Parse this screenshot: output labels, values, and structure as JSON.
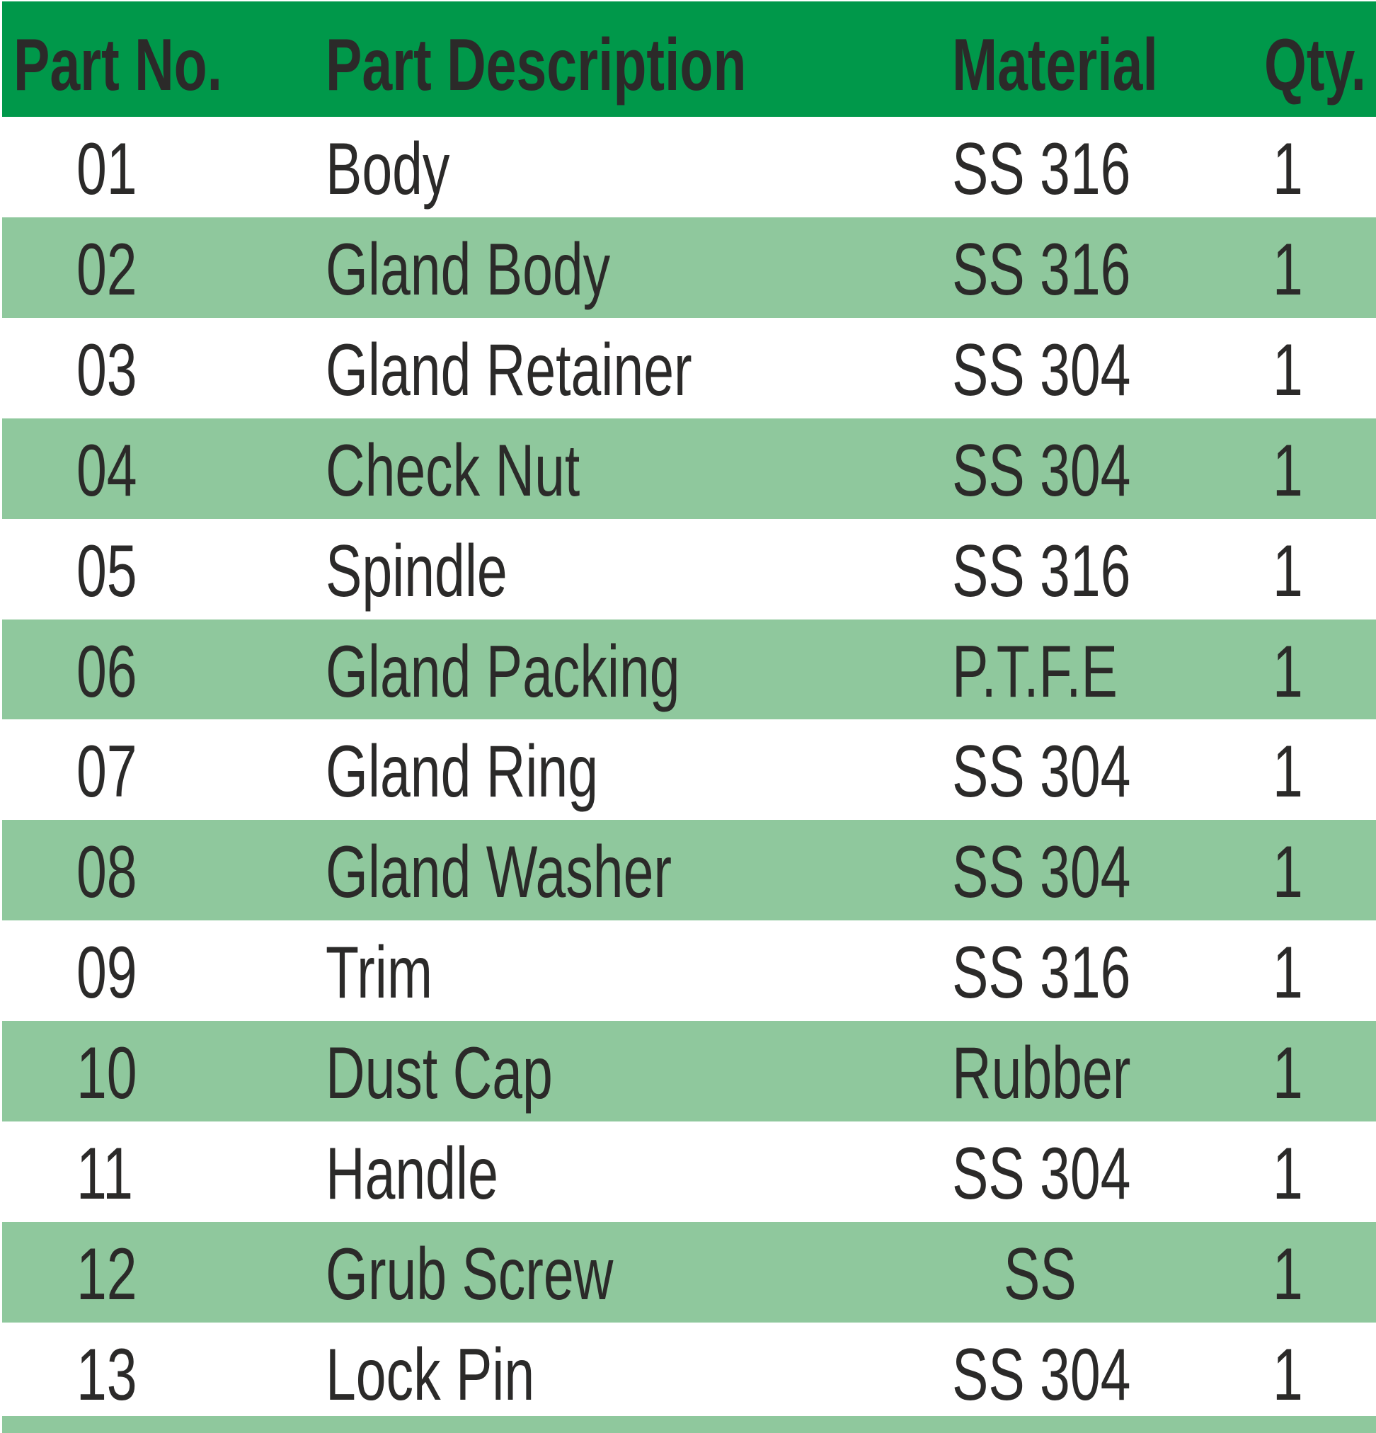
{
  "colors": {
    "header": "#00984a",
    "stripe": "#8fc89d",
    "text": "#2b2a29"
  },
  "headers": {
    "part_no": "Part No.",
    "description": "Part Description",
    "material": "Material",
    "qty": "Qty."
  },
  "rows": [
    {
      "no": "01",
      "desc": "Body",
      "mat": "SS 316",
      "qty": "1"
    },
    {
      "no": "02",
      "desc": "Gland Body",
      "mat": "SS 316",
      "qty": "1"
    },
    {
      "no": "03",
      "desc": "Gland Retainer",
      "mat": "SS 304",
      "qty": "1"
    },
    {
      "no": "04",
      "desc": "Check Nut",
      "mat": "SS 304",
      "qty": "1"
    },
    {
      "no": "05",
      "desc": "Spindle",
      "mat": "SS 316",
      "qty": "1"
    },
    {
      "no": "06",
      "desc": "Gland Packing",
      "mat": "P.T.F.E",
      "qty": "1"
    },
    {
      "no": "07",
      "desc": "Gland Ring",
      "mat": "SS 304",
      "qty": "1"
    },
    {
      "no": "08",
      "desc": "Gland Washer",
      "mat": "SS 304",
      "qty": "1"
    },
    {
      "no": "09",
      "desc": "Trim",
      "mat": "SS 316",
      "qty": "1"
    },
    {
      "no": "10",
      "desc": "Dust Cap",
      "mat": "Rubber",
      "qty": "1"
    },
    {
      "no": "11",
      "desc": "Handle",
      "mat": "SS 304",
      "qty": "1"
    },
    {
      "no": "12",
      "desc": "Grub Screw",
      "mat": "SS",
      "qty": "1"
    },
    {
      "no": "13",
      "desc": "Lock Pin",
      "mat": "SS 304",
      "qty": "1"
    }
  ]
}
